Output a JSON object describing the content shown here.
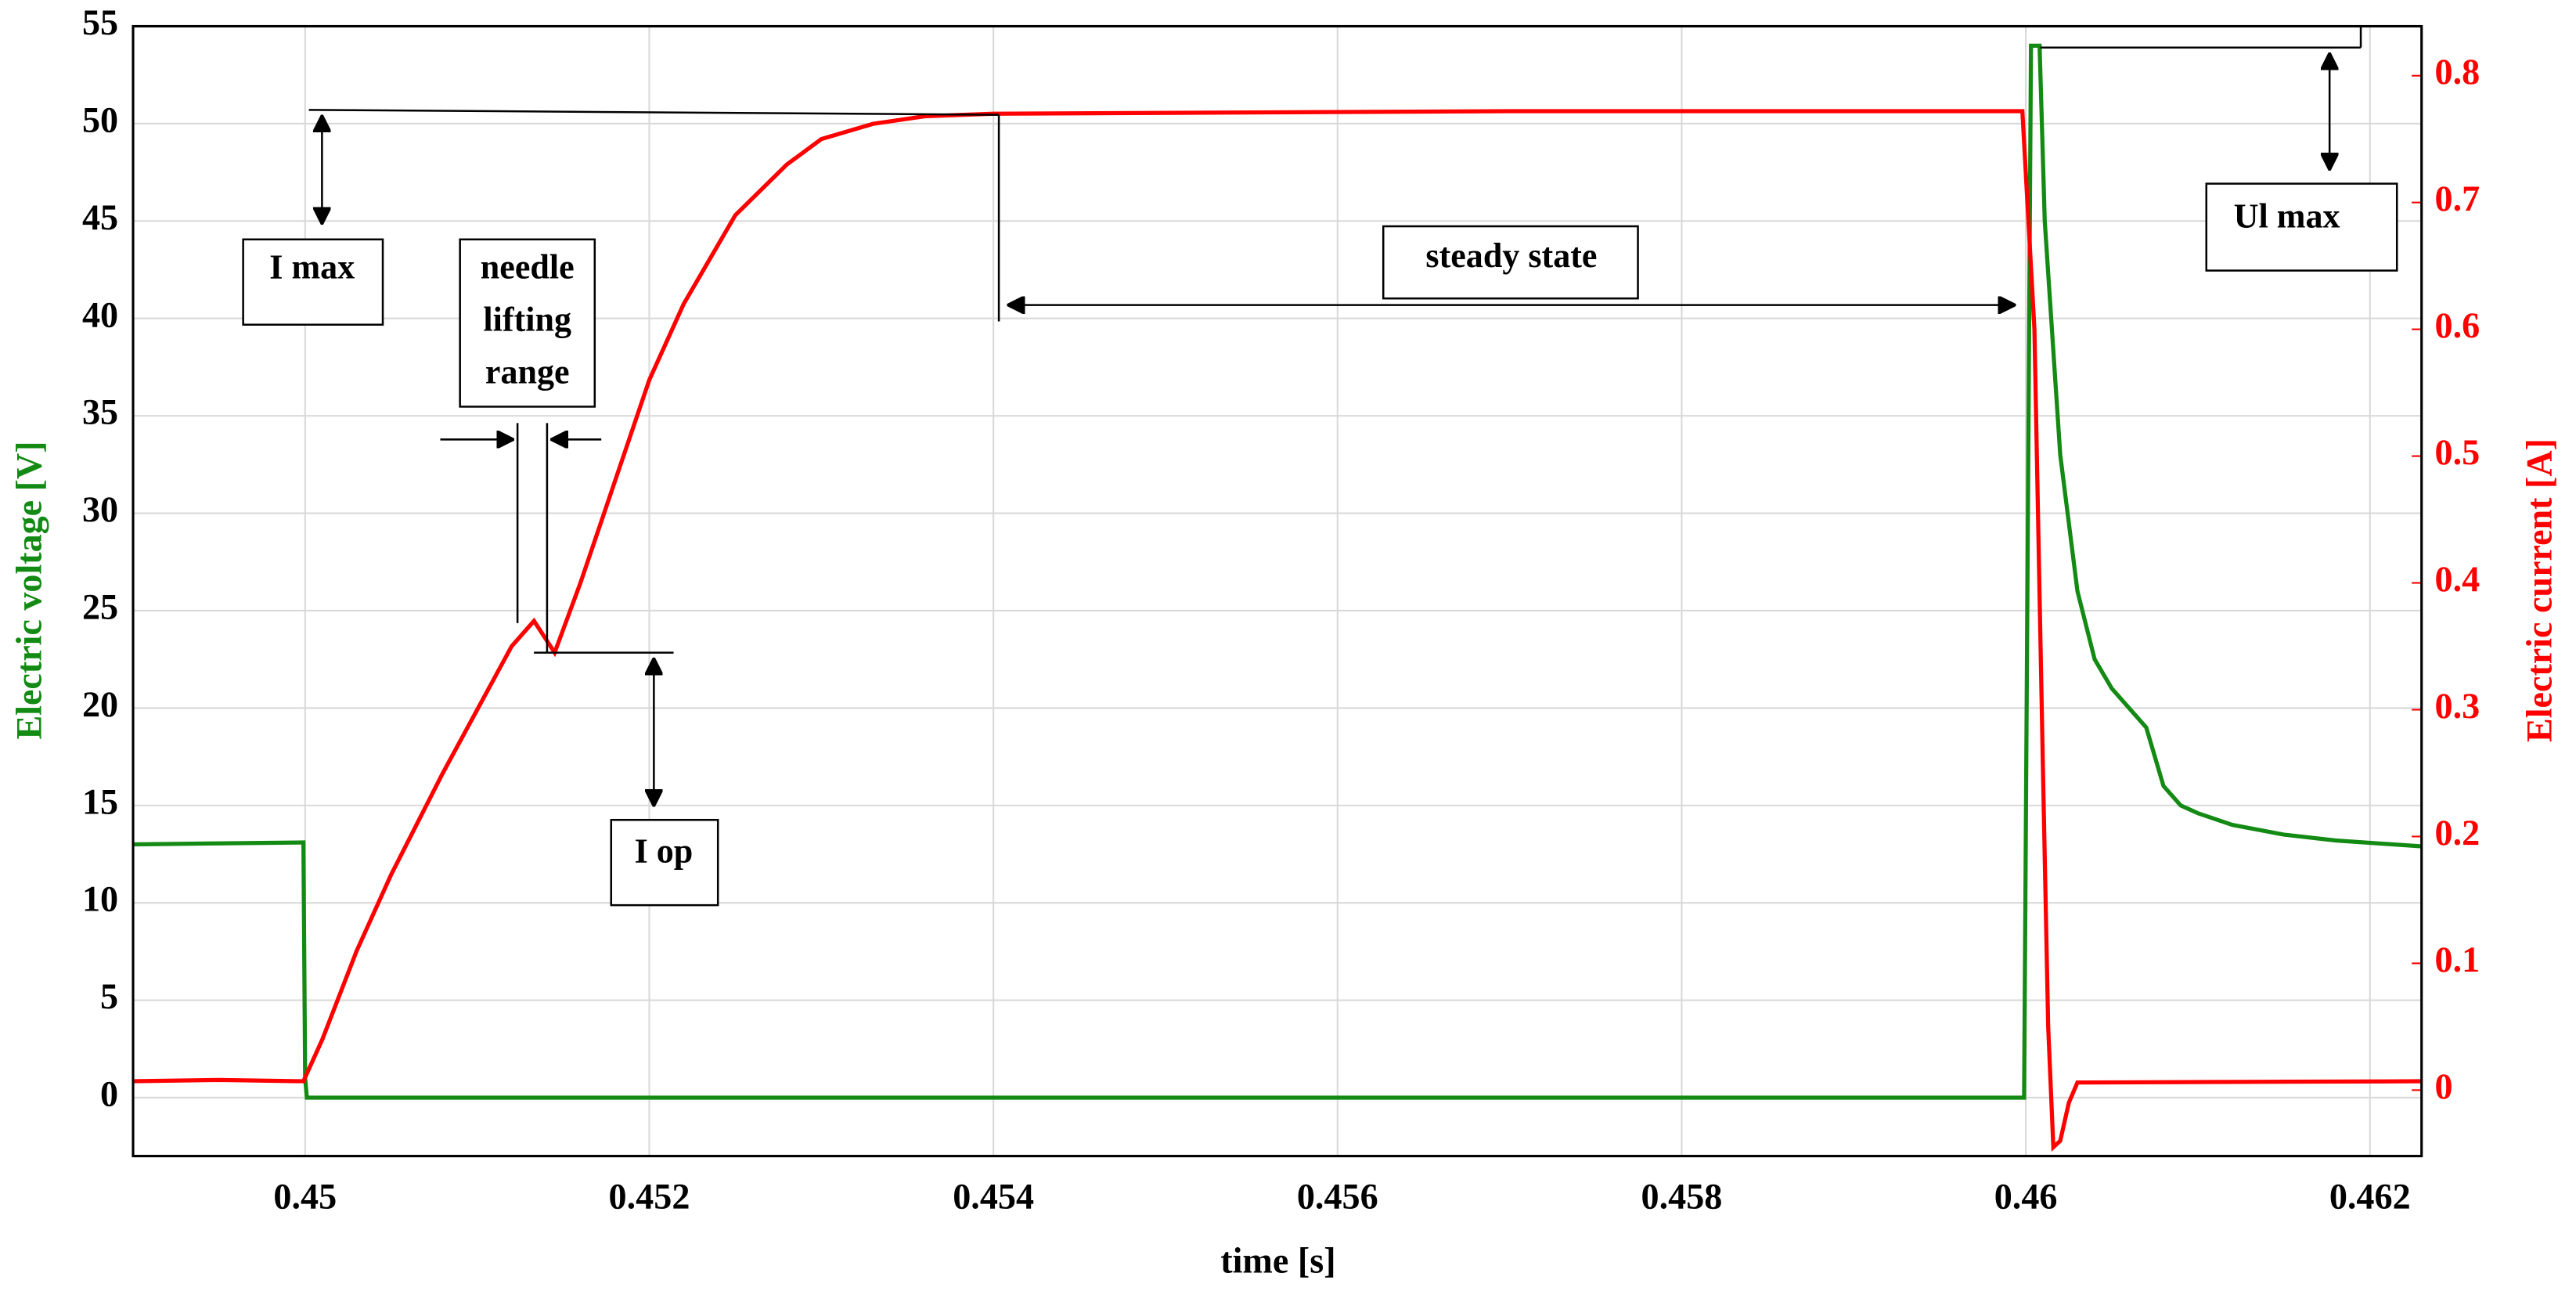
{
  "chart_data": {
    "type": "line",
    "xlabel": "time [s]",
    "ylabel": "Electric voltage [V]",
    "y2label": "Electric current [A]",
    "xlim": [
      0.449,
      0.4623
    ],
    "xticks": [
      0.45,
      0.452,
      0.454,
      0.456,
      0.458,
      0.46,
      0.462
    ],
    "ylim": [
      -3,
      55
    ],
    "yticks": [
      0,
      5,
      10,
      15,
      20,
      25,
      30,
      35,
      40,
      45,
      50,
      55
    ],
    "y2lim": [
      -0.052,
      0.839
    ],
    "y2ticks": [
      0,
      0.1,
      0.2,
      0.3,
      0.4,
      0.5,
      0.6,
      0.7,
      0.8
    ],
    "grid": true,
    "ycolor": "#138a13",
    "y2color": "#ff0000",
    "series": [
      {
        "name": "Electric voltage",
        "color": "#138a13",
        "axis": "y",
        "x": [
          0.449,
          0.44999,
          0.45,
          0.45001,
          0.455,
          0.45999,
          0.46003,
          0.46008,
          0.46011,
          0.4602,
          0.4603,
          0.4604,
          0.4605,
          0.4606,
          0.4607,
          0.46075,
          0.4608,
          0.4609,
          0.461,
          0.4612,
          0.4615,
          0.4618,
          0.4623
        ],
        "values": [
          13,
          13.1,
          1,
          0,
          0,
          0,
          54,
          54,
          45,
          33,
          26,
          22.5,
          21,
          20,
          19,
          17.5,
          16,
          15,
          14.6,
          14,
          13.5,
          13.2,
          12.9
        ]
      },
      {
        "name": "Electric current",
        "color": "#ff0000",
        "axis": "y2",
        "x": [
          0.449,
          0.4495,
          0.44999,
          0.4501,
          0.4503,
          0.4505,
          0.4508,
          0.451,
          0.4512,
          0.45133,
          0.45145,
          0.4516,
          0.4518,
          0.452,
          0.4522,
          0.4525,
          0.4528,
          0.453,
          0.4533,
          0.4536,
          0.454,
          0.457,
          0.45998,
          0.46005,
          0.4601,
          0.46013,
          0.46016,
          0.4602,
          0.46025,
          0.4603,
          0.4623
        ],
        "values": [
          0.007,
          0.008,
          0.007,
          0.04,
          0.11,
          0.17,
          0.25,
          0.3,
          0.35,
          0.37,
          0.345,
          0.4,
          0.48,
          0.56,
          0.62,
          0.69,
          0.73,
          0.75,
          0.762,
          0.768,
          0.77,
          0.772,
          0.772,
          0.6,
          0.25,
          0.05,
          -0.045,
          -0.04,
          -0.01,
          0.006,
          0.007
        ]
      }
    ],
    "annotations": [
      "I max",
      "needle",
      "lifting",
      "range",
      "I op",
      "steady state",
      "Ul max"
    ]
  }
}
